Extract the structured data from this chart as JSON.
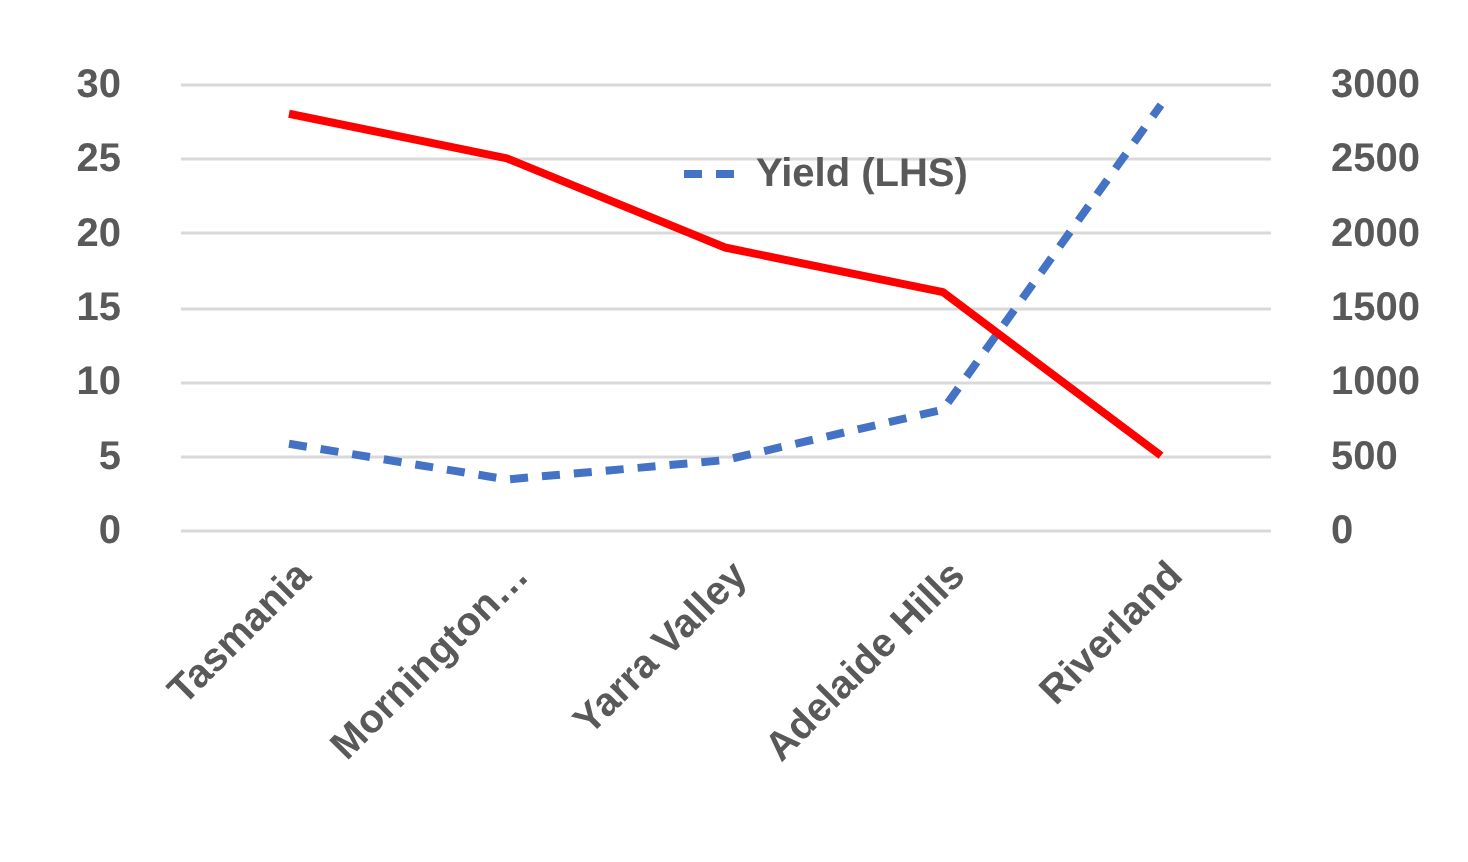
{
  "chart_data": {
    "type": "line",
    "categories": [
      "Tasmania",
      "Mornington…",
      "Yarra Valley",
      "Adelaide Hills",
      "Riverland"
    ],
    "series": [
      {
        "name": "Yield (LHS)",
        "color": "#4472c4",
        "line_style": "dashed",
        "values": [
          5.8,
          3.4,
          4.7,
          8.1,
          28.6
        ]
      },
      {
        "color": "#ff0000",
        "axis": "y2",
        "line_style": "solid",
        "values": [
          2800,
          2500,
          1900,
          1600,
          500
        ]
      }
    ],
    "ylim": [
      0,
      30
    ],
    "yticks": [
      0,
      5,
      10,
      15,
      20,
      25,
      30
    ],
    "y2lim": [
      0,
      3000
    ],
    "y2ticks": [
      0,
      500,
      1000,
      1500,
      2000,
      2500,
      3000
    ],
    "grid": "y",
    "legend": "top",
    "marker": "none"
  }
}
